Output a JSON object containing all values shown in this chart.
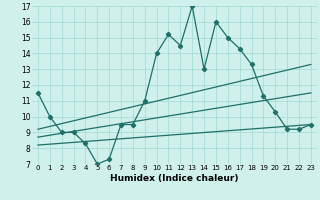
{
  "title": "",
  "xlabel": "Humidex (Indice chaleur)",
  "xlim": [
    -0.5,
    23.5
  ],
  "ylim": [
    7,
    17
  ],
  "yticks": [
    7,
    8,
    9,
    10,
    11,
    12,
    13,
    14,
    15,
    16,
    17
  ],
  "xticks": [
    0,
    1,
    2,
    3,
    4,
    5,
    6,
    7,
    8,
    9,
    10,
    11,
    12,
    13,
    14,
    15,
    16,
    17,
    18,
    19,
    20,
    21,
    22,
    23
  ],
  "bg_color": "#cff0eb",
  "line_color": "#1e7068",
  "grid_color": "#a8ddd7",
  "line_main": {
    "x": [
      0,
      1,
      2,
      3,
      4,
      5,
      6,
      7,
      8,
      9,
      10,
      11,
      12,
      13,
      14,
      15,
      16,
      17,
      18,
      19,
      20,
      21,
      22,
      23
    ],
    "y": [
      11.5,
      10.0,
      9.0,
      9.0,
      8.3,
      7.0,
      7.3,
      9.5,
      9.5,
      11.0,
      14.0,
      15.2,
      14.5,
      17.0,
      13.0,
      16.0,
      15.0,
      14.3,
      13.3,
      11.3,
      10.3,
      9.2,
      9.2,
      9.5
    ]
  },
  "trend_lines": [
    {
      "x": [
        0,
        23
      ],
      "y": [
        9.2,
        13.3
      ]
    },
    {
      "x": [
        0,
        23
      ],
      "y": [
        8.7,
        11.5
      ]
    },
    {
      "x": [
        0,
        23
      ],
      "y": [
        8.2,
        9.5
      ]
    }
  ]
}
